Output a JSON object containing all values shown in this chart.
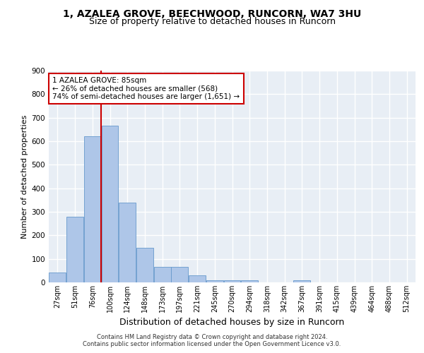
{
  "title_line1": "1, AZALEA GROVE, BEECHWOOD, RUNCORN, WA7 3HU",
  "title_line2": "Size of property relative to detached houses in Runcorn",
  "xlabel": "Distribution of detached houses by size in Runcorn",
  "ylabel": "Number of detached properties",
  "categories": [
    "27sqm",
    "51sqm",
    "76sqm",
    "100sqm",
    "124sqm",
    "148sqm",
    "173sqm",
    "197sqm",
    "221sqm",
    "245sqm",
    "270sqm",
    "294sqm",
    "318sqm",
    "342sqm",
    "367sqm",
    "391sqm",
    "415sqm",
    "439sqm",
    "464sqm",
    "488sqm",
    "512sqm"
  ],
  "values": [
    43,
    280,
    620,
    665,
    340,
    148,
    65,
    65,
    30,
    10,
    10,
    10,
    0,
    0,
    8,
    0,
    0,
    0,
    0,
    0,
    0
  ],
  "bar_color": "#aec6e8",
  "bar_edge_color": "#6699cc",
  "vline_color": "#cc0000",
  "vline_pos": 2.5,
  "annotation_text": "1 AZALEA GROVE: 85sqm\n← 26% of detached houses are smaller (568)\n74% of semi-detached houses are larger (1,651) →",
  "annotation_box_color": "#ffffff",
  "annotation_box_edge_color": "#cc0000",
  "footer_text": "Contains HM Land Registry data © Crown copyright and database right 2024.\nContains public sector information licensed under the Open Government Licence v3.0.",
  "ylim": [
    0,
    900
  ],
  "yticks": [
    0,
    100,
    200,
    300,
    400,
    500,
    600,
    700,
    800,
    900
  ],
  "background_color": "#e8eef5",
  "grid_color": "#ffffff",
  "fig_bg_color": "#ffffff",
  "title_fontsize": 10,
  "subtitle_fontsize": 9,
  "tick_fontsize": 7,
  "ylabel_fontsize": 8,
  "xlabel_fontsize": 9,
  "annotation_fontsize": 7.5
}
